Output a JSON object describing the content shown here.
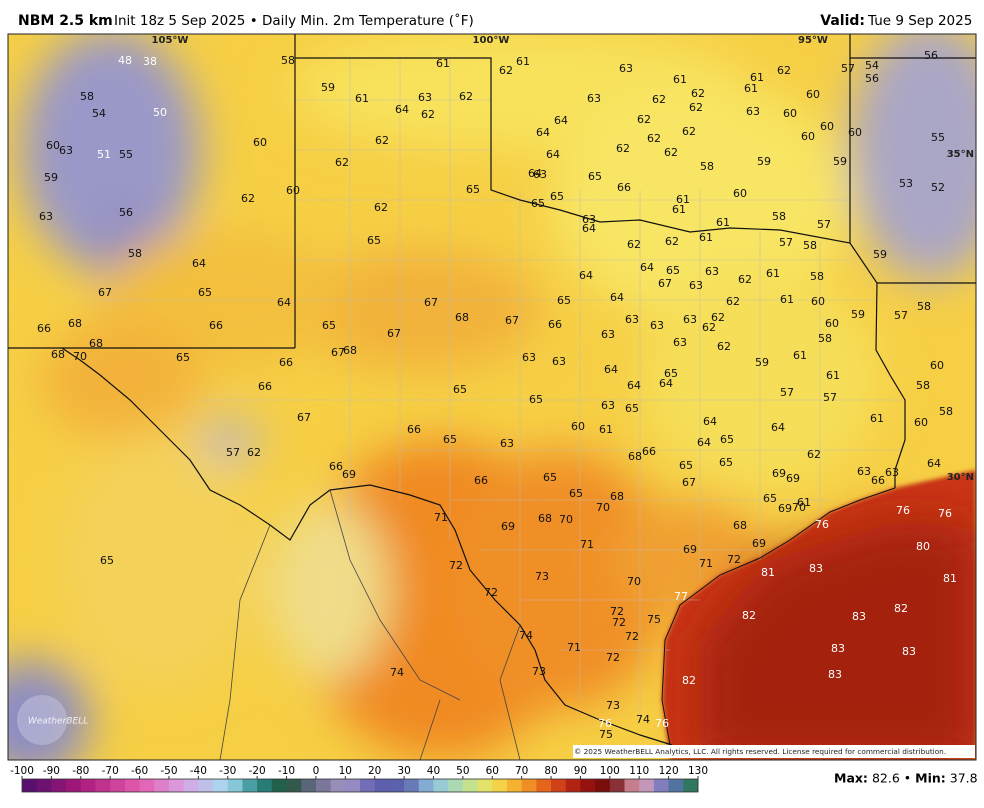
{
  "header": {
    "model": "NBM 2.5 km",
    "subtitle": "Init 18z 5 Sep 2025 • Daily Min. 2m Temperature (˚F)",
    "valid_label": "Valid:",
    "valid_date": "Tue 9 Sep 2025"
  },
  "map": {
    "lon_labels": [
      "105°W",
      "100°W",
      "95°W"
    ],
    "lat_labels": [
      "35°N",
      "30°N"
    ],
    "logo": "WeatherBELL",
    "copyright": "© 2025 WeatherBELL Analytics, LLC. All rights reserved. License required for commercial distribution.",
    "stations": [
      48,
      38,
      58,
      54,
      50,
      60,
      63,
      51,
      55,
      59,
      63,
      56,
      58,
      67,
      66,
      68,
      68,
      68,
      70,
      64,
      65,
      66,
      65,
      58,
      59,
      61,
      64,
      63,
      62,
      62,
      61,
      62,
      61,
      62,
      62,
      60,
      60,
      62,
      62,
      65,
      65,
      64,
      65,
      67,
      67,
      68,
      67,
      68,
      67,
      66,
      66,
      67,
      66,
      65,
      65,
      63,
      65,
      63,
      63,
      57,
      62,
      66,
      69,
      66,
      65,
      65,
      68,
      70,
      68,
      70,
      69,
      71,
      71,
      72,
      72,
      73,
      70,
      72,
      72,
      75,
      72,
      72,
      71,
      74,
      73,
      74,
      73,
      74,
      76,
      75,
      76,
      65,
      82,
      82,
      81,
      83,
      83,
      83,
      83,
      83,
      82,
      81,
      80,
      76,
      76,
      76,
      69,
      71,
      72,
      69,
      68,
      77,
      67,
      65,
      65,
      68,
      66,
      64,
      65,
      64,
      64,
      62,
      63,
      63,
      66,
      64,
      65,
      69,
      69,
      69,
      70,
      61,
      61,
      60,
      58,
      58,
      60,
      57,
      58,
      59,
      60,
      58,
      58,
      60,
      61,
      61,
      62,
      62,
      62,
      62,
      63,
      62,
      63,
      63,
      63,
      63,
      66,
      65,
      64,
      64,
      64,
      65,
      67,
      63,
      63,
      62,
      62,
      61,
      61,
      61,
      61,
      60,
      58,
      59,
      58,
      57,
      58,
      57,
      59,
      59,
      60,
      60,
      60,
      60,
      60,
      63,
      62,
      61,
      61,
      62,
      62,
      62,
      61,
      62,
      63,
      63,
      62,
      62,
      62,
      62,
      64,
      64,
      64,
      64,
      63,
      65,
      66,
      65,
      65,
      63,
      64,
      64,
      64,
      64,
      65,
      63,
      65,
      60,
      61,
      59,
      61,
      61,
      57,
      57,
      57,
      54,
      56,
      56,
      55,
      52,
      53
    ]
  },
  "colorbar": {
    "ticks": [
      -100,
      -90,
      -80,
      -70,
      -60,
      -50,
      -40,
      -30,
      -20,
      -10,
      0,
      10,
      20,
      30,
      40,
      50,
      60,
      70,
      80,
      90,
      100,
      110,
      120,
      130
    ]
  },
  "stats": {
    "max_label": "Max:",
    "max": 82.6,
    "separator": "•",
    "min_label": "Min:",
    "min": 37.8
  }
}
